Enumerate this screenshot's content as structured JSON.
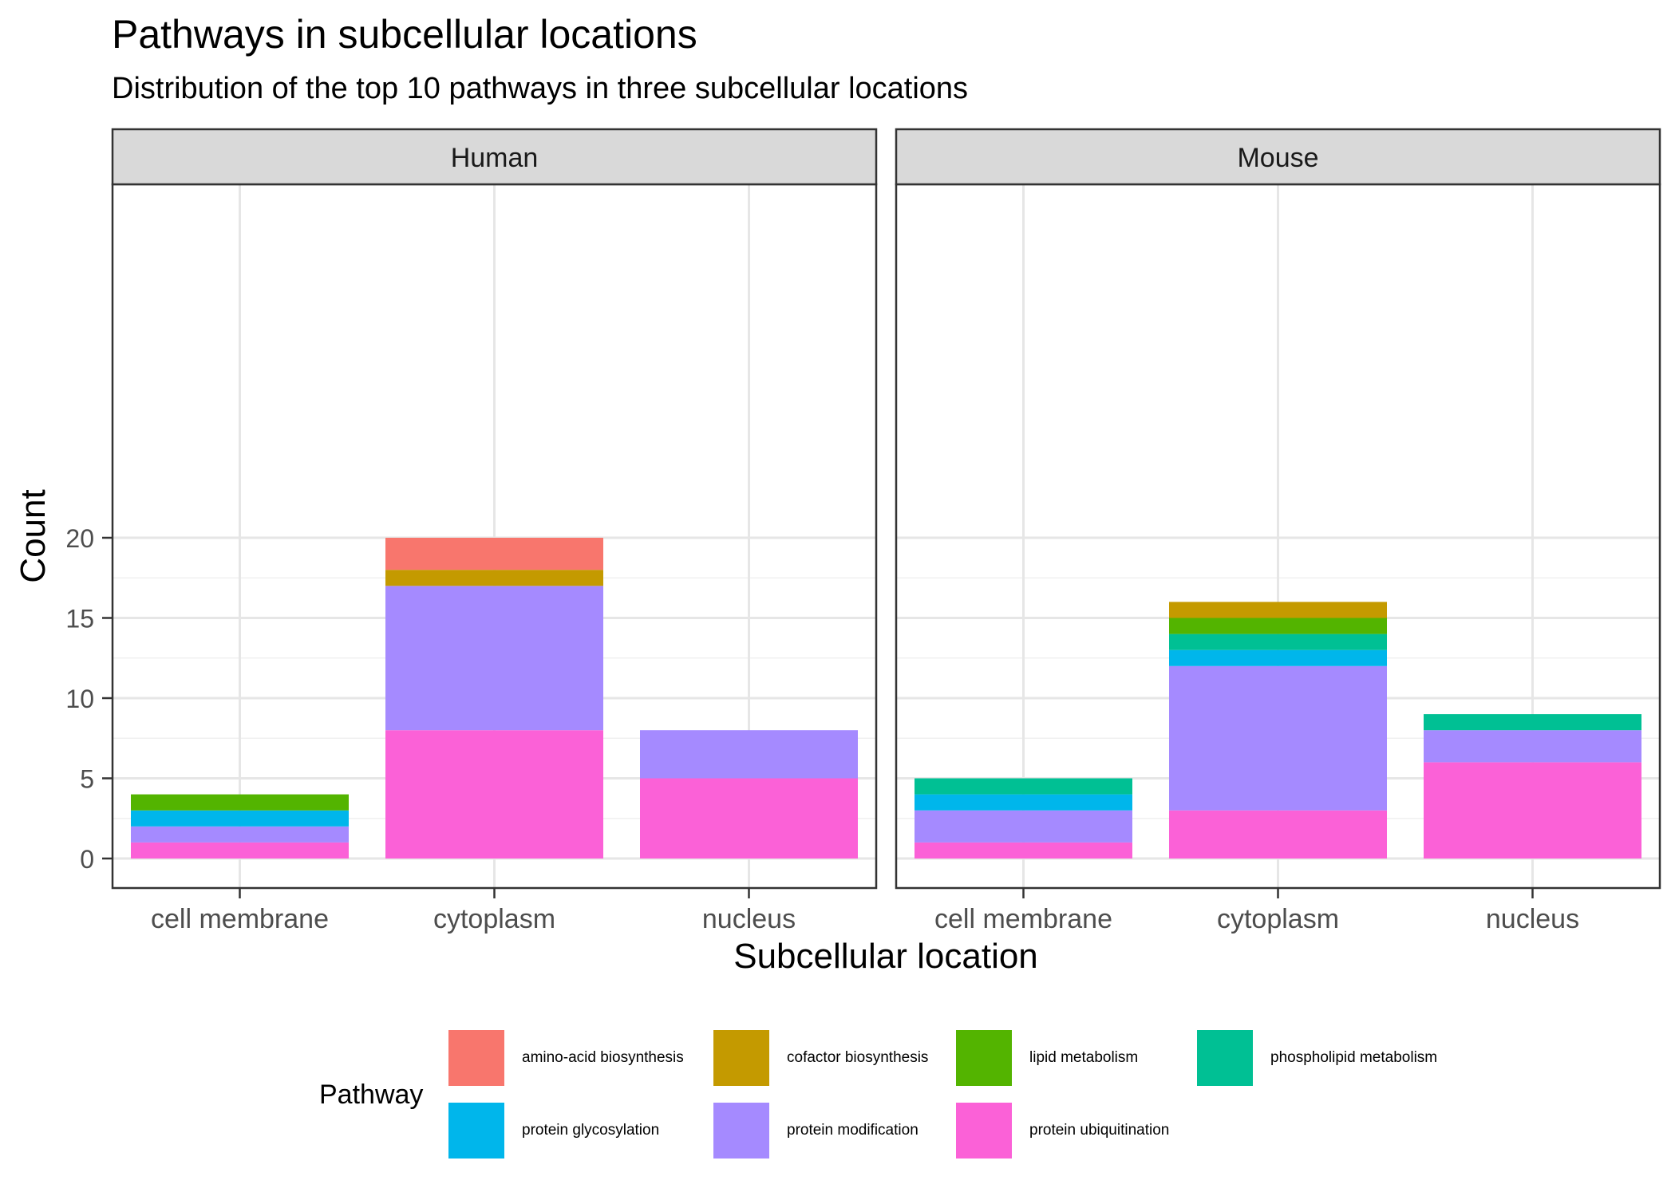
{
  "title": "Pathways in subcellular locations",
  "subtitle": "Distribution of the top 10 pathways in three subcellular locations",
  "chart_data": {
    "type": "bar",
    "stacked": true,
    "xlabel": "Subcellular location",
    "ylabel": "Count",
    "ylim": [
      0,
      21
    ],
    "yticks": [
      0,
      5,
      10,
      15,
      20
    ],
    "grid": true,
    "legend_placement": "bottom",
    "legend_title": "Pathway",
    "categories": [
      "cell membrane",
      "cytoplasm",
      "nucleus"
    ],
    "pathways": [
      {
        "name": "amino-acid biosynthesis",
        "color": "#F8766D"
      },
      {
        "name": "cofactor biosynthesis",
        "color": "#C49A00"
      },
      {
        "name": "lipid metabolism",
        "color": "#53B400"
      },
      {
        "name": "phospholipid metabolism",
        "color": "#00C094"
      },
      {
        "name": "protein glycosylation",
        "color": "#00B6EB"
      },
      {
        "name": "protein modification",
        "color": "#A58AFF"
      },
      {
        "name": "protein ubiquitination",
        "color": "#FB61D7"
      }
    ],
    "facets": [
      {
        "label": "Human",
        "series": [
          {
            "name": "amino-acid biosynthesis",
            "values": [
              0,
              2,
              0
            ]
          },
          {
            "name": "cofactor biosynthesis",
            "values": [
              0,
              1,
              0
            ]
          },
          {
            "name": "lipid metabolism",
            "values": [
              1,
              0,
              0
            ]
          },
          {
            "name": "phospholipid metabolism",
            "values": [
              0,
              0,
              0
            ]
          },
          {
            "name": "protein glycosylation",
            "values": [
              1,
              0,
              0
            ]
          },
          {
            "name": "protein modification",
            "values": [
              1,
              9,
              3
            ]
          },
          {
            "name": "protein ubiquitination",
            "values": [
              1,
              8,
              5
            ]
          }
        ]
      },
      {
        "label": "Mouse",
        "series": [
          {
            "name": "amino-acid biosynthesis",
            "values": [
              0,
              0,
              0
            ]
          },
          {
            "name": "cofactor biosynthesis",
            "values": [
              0,
              1,
              0
            ]
          },
          {
            "name": "lipid metabolism",
            "values": [
              0,
              1,
              0
            ]
          },
          {
            "name": "phospholipid metabolism",
            "values": [
              1,
              1,
              1
            ]
          },
          {
            "name": "protein glycosylation",
            "values": [
              1,
              1,
              0
            ]
          },
          {
            "name": "protein modification",
            "values": [
              2,
              9,
              2
            ]
          },
          {
            "name": "protein ubiquitination",
            "values": [
              1,
              3,
              6
            ]
          }
        ]
      }
    ]
  }
}
